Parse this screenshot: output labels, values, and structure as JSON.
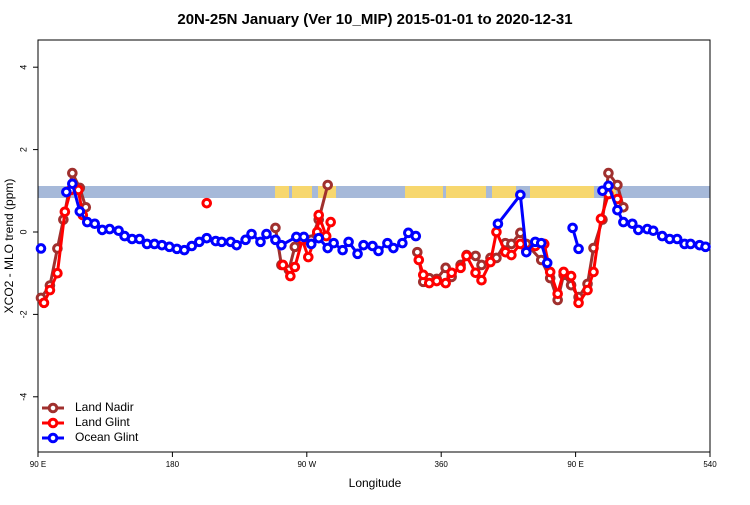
{
  "chart_data": {
    "type": "line",
    "title": "20N-25N January (Ver 10_MIP)   2015-01-01 to 2020-12-31",
    "x_label": "Longitude",
    "y_label": "XCO2 - MLO trend (ppm)",
    "xlim": [
      90,
      540
    ],
    "ylim": [
      -5.34,
      4.66
    ],
    "xticks": [
      {
        "value": 90,
        "label": "90 E"
      },
      180,
      {
        "value": 270,
        "label": "90 W"
      },
      360,
      {
        "value": 450,
        "label": "90 E"
      },
      540
    ],
    "yticks": [
      4,
      2,
      0,
      -2,
      -4
    ],
    "legend": "bottom-left",
    "series": [
      {
        "name": "Land Nadir",
        "color": "#a0302e",
        "x": [
          92,
          98,
          103,
          107,
          113,
          118,
          122,
          249,
          253,
          258,
          262,
          268,
          273,
          278,
          284,
          344,
          348,
          352,
          357,
          363,
          367,
          373,
          377,
          383,
          387,
          393,
          397,
          403,
          407,
          413,
          417,
          427,
          433,
          438,
          442,
          447,
          452,
          458,
          462,
          468,
          472,
          478,
          482
        ],
        "values": [
          -1.6,
          -1.3,
          -0.4,
          0.3,
          1.43,
          1.07,
          0.6,
          0.1,
          -0.8,
          -0.92,
          -0.36,
          -0.19,
          -0.19,
          0.3,
          1.14,
          -0.49,
          -1.21,
          -1.12,
          -1.14,
          -0.87,
          -1.09,
          -0.8,
          -0.56,
          -0.58,
          -0.8,
          -0.63,
          -0.63,
          -0.27,
          -0.29,
          -0.02,
          -0.29,
          -0.68,
          -1.12,
          -1.65,
          -1.04,
          -1.29,
          -1.58,
          -1.26,
          -0.39,
          0.3,
          1.43,
          1.14,
          0.6
        ]
      },
      {
        "name": "Land Glint",
        "color": "#ff0000",
        "x": [
          94,
          98,
          103,
          108,
          112,
          117,
          120,
          203,
          254,
          259,
          262,
          267,
          271,
          277,
          278,
          283,
          286,
          345,
          348,
          352,
          357,
          363,
          367,
          373,
          377,
          383,
          387,
          393,
          397,
          403,
          407,
          413,
          417,
          423,
          429,
          433,
          438,
          442,
          447,
          452,
          458,
          462,
          467,
          472,
          478
        ],
        "values": [
          -1.72,
          -1.41,
          -1.0,
          0.49,
          1.02,
          1.02,
          0.41,
          0.7,
          -0.8,
          -1.07,
          -0.85,
          -0.19,
          -0.61,
          0.0,
          0.41,
          -0.1,
          0.24,
          -0.68,
          -1.04,
          -1.24,
          -1.19,
          -1.24,
          -0.99,
          -0.87,
          -0.58,
          -0.99,
          -1.17,
          -0.73,
          0.0,
          -0.49,
          -0.56,
          -0.29,
          -0.46,
          -0.34,
          -0.29,
          -0.97,
          -1.5,
          -0.97,
          -1.07,
          -1.72,
          -1.41,
          -0.97,
          0.32,
          0.92,
          0.8
        ]
      },
      {
        "name": "Ocean Glint",
        "color": "#0000ff",
        "x": [
          92,
          109,
          113,
          118,
          123,
          128,
          133,
          138,
          144,
          148,
          153,
          158,
          163,
          168,
          173,
          178,
          183,
          188,
          193,
          198,
          203,
          209,
          213,
          219,
          223,
          229,
          233,
          239,
          243,
          249,
          253,
          263,
          268,
          273,
          278,
          284,
          288,
          294,
          298,
          304,
          308,
          314,
          318,
          324,
          328,
          334,
          338,
          343,
          398,
          413,
          417,
          423,
          427,
          431,
          448,
          452,
          468,
          472,
          478,
          482,
          488,
          492,
          498,
          502,
          508,
          513,
          518,
          523,
          527,
          533,
          537
        ],
        "values": [
          -0.4,
          0.97,
          1.17,
          0.5,
          0.24,
          0.2,
          0.05,
          0.07,
          0.03,
          -0.1,
          -0.17,
          -0.17,
          -0.29,
          -0.29,
          -0.32,
          -0.36,
          -0.41,
          -0.44,
          -0.34,
          -0.24,
          -0.15,
          -0.22,
          -0.24,
          -0.24,
          -0.32,
          -0.19,
          -0.05,
          -0.24,
          -0.05,
          -0.19,
          -0.32,
          -0.12,
          -0.12,
          -0.29,
          -0.15,
          -0.39,
          -0.27,
          -0.44,
          -0.24,
          -0.53,
          -0.32,
          -0.34,
          -0.46,
          -0.27,
          -0.39,
          -0.27,
          -0.02,
          -0.1,
          0.2,
          0.9,
          -0.49,
          -0.24,
          -0.27,
          -0.75,
          0.1,
          -0.41,
          1.0,
          1.12,
          0.53,
          0.24,
          0.2,
          0.05,
          0.07,
          0.03,
          -0.1,
          -0.17,
          -0.17,
          -0.29,
          -0.29,
          -0.32,
          -0.36
        ]
      }
    ]
  }
}
